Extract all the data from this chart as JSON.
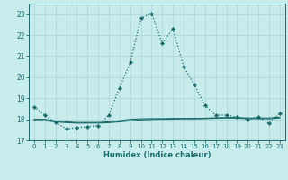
{
  "xlabel": "Humidex (Indice chaleur)",
  "background_color": "#c8ecec",
  "grid_color": "#b0d8d8",
  "line_color": "#1a6b6b",
  "xlim": [
    -0.5,
    23.5
  ],
  "ylim": [
    17,
    23.5
  ],
  "yticks": [
    17,
    18,
    19,
    20,
    21,
    22,
    23
  ],
  "xticks": [
    0,
    1,
    2,
    3,
    4,
    5,
    6,
    7,
    8,
    9,
    10,
    11,
    12,
    13,
    14,
    15,
    16,
    17,
    18,
    19,
    20,
    21,
    22,
    23
  ],
  "x": [
    0,
    1,
    2,
    3,
    4,
    5,
    6,
    7,
    8,
    9,
    10,
    11,
    12,
    13,
    14,
    15,
    16,
    17,
    18,
    19,
    20,
    21,
    22,
    23
  ],
  "y_main": [
    18.6,
    18.2,
    17.85,
    17.55,
    17.6,
    17.65,
    17.7,
    18.2,
    19.5,
    20.7,
    22.8,
    23.05,
    21.6,
    22.3,
    20.5,
    19.65,
    18.65,
    18.2,
    18.2,
    18.1,
    18.0,
    18.1,
    17.8,
    18.3
  ],
  "y_line2": [
    18.0,
    18.0,
    17.92,
    17.88,
    17.85,
    17.85,
    17.85,
    17.88,
    17.93,
    18.0,
    18.02,
    18.03,
    18.03,
    18.04,
    18.04,
    18.04,
    18.05,
    18.07,
    18.08,
    18.08,
    18.06,
    18.06,
    18.06,
    18.1
  ],
  "y_line3": [
    17.95,
    17.93,
    17.88,
    17.84,
    17.82,
    17.82,
    17.82,
    17.84,
    17.88,
    17.93,
    17.97,
    17.99,
    18.0,
    18.01,
    18.02,
    18.02,
    18.03,
    18.05,
    18.06,
    18.05,
    18.03,
    18.03,
    18.02,
    18.06
  ]
}
